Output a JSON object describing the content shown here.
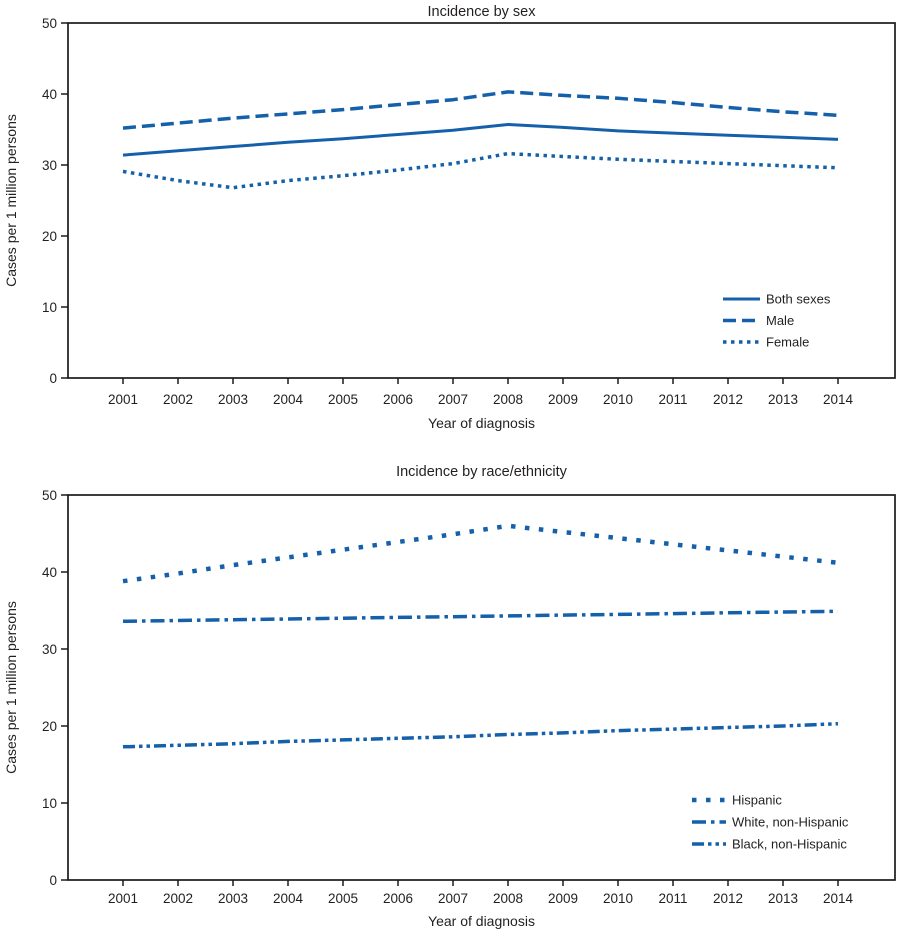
{
  "colors": {
    "line_blue": "#1560aa",
    "axis_black": "#1a1a1a",
    "text_dark": "#231f20",
    "background": "#ffffff"
  },
  "chart_data": [
    {
      "type": "line",
      "title": "Incidence by sex",
      "xlabel": "Year of diagnosis",
      "ylabel": "Cases per 1 million persons",
      "ylim": [
        0,
        50
      ],
      "yticks": [
        0,
        10,
        20,
        30,
        40,
        50
      ],
      "grid": false,
      "legend_position": "lower right inside plot",
      "categories": [
        "2001",
        "2002",
        "2003",
        "2004",
        "2005",
        "2006",
        "2007",
        "2008",
        "2009",
        "2010",
        "2011",
        "2012",
        "2013",
        "2014"
      ],
      "series": [
        {
          "name": "Both sexes",
          "style": "solid",
          "values": [
            31.4,
            32.0,
            32.6,
            33.2,
            33.7,
            34.3,
            34.9,
            35.7,
            35.3,
            34.8,
            34.5,
            34.2,
            33.9,
            33.6
          ]
        },
        {
          "name": "Male",
          "style": "dashed",
          "values": [
            35.2,
            35.9,
            36.6,
            37.2,
            37.8,
            38.5,
            39.2,
            40.3,
            39.8,
            39.4,
            38.8,
            38.1,
            37.5,
            37.0
          ]
        },
        {
          "name": "Female",
          "style": "dotted",
          "values": [
            29.1,
            27.8,
            26.8,
            27.8,
            28.5,
            29.3,
            30.2,
            31.6,
            31.2,
            30.8,
            30.5,
            30.2,
            29.9,
            29.6
          ]
        }
      ]
    },
    {
      "type": "line",
      "title": "Incidence by race/ethnicity",
      "xlabel": "Year of diagnosis",
      "ylabel": "Cases per 1 million persons",
      "ylim": [
        0,
        50
      ],
      "yticks": [
        0,
        10,
        20,
        30,
        40,
        50
      ],
      "grid": false,
      "legend_position": "lower right inside plot",
      "categories": [
        "2001",
        "2002",
        "2003",
        "2004",
        "2005",
        "2006",
        "2007",
        "2008",
        "2009",
        "2010",
        "2011",
        "2012",
        "2013",
        "2014"
      ],
      "series": [
        {
          "name": "Hispanic",
          "style": "sparse-dot",
          "values": [
            38.8,
            39.8,
            40.9,
            41.9,
            42.9,
            43.9,
            44.9,
            46.0,
            45.2,
            44.4,
            43.6,
            42.8,
            42.0,
            41.2
          ]
        },
        {
          "name": "White, non-Hispanic",
          "style": "dash-dot",
          "values": [
            33.6,
            33.7,
            33.8,
            33.9,
            34.0,
            34.1,
            34.2,
            34.3,
            34.4,
            34.5,
            34.6,
            34.7,
            34.8,
            34.9
          ]
        },
        {
          "name": "Black, non-Hispanic",
          "style": "dash-dot-dot",
          "values": [
            17.3,
            17.5,
            17.7,
            18.0,
            18.2,
            18.4,
            18.6,
            18.9,
            19.1,
            19.4,
            19.6,
            19.8,
            20.0,
            20.3
          ]
        }
      ]
    }
  ]
}
